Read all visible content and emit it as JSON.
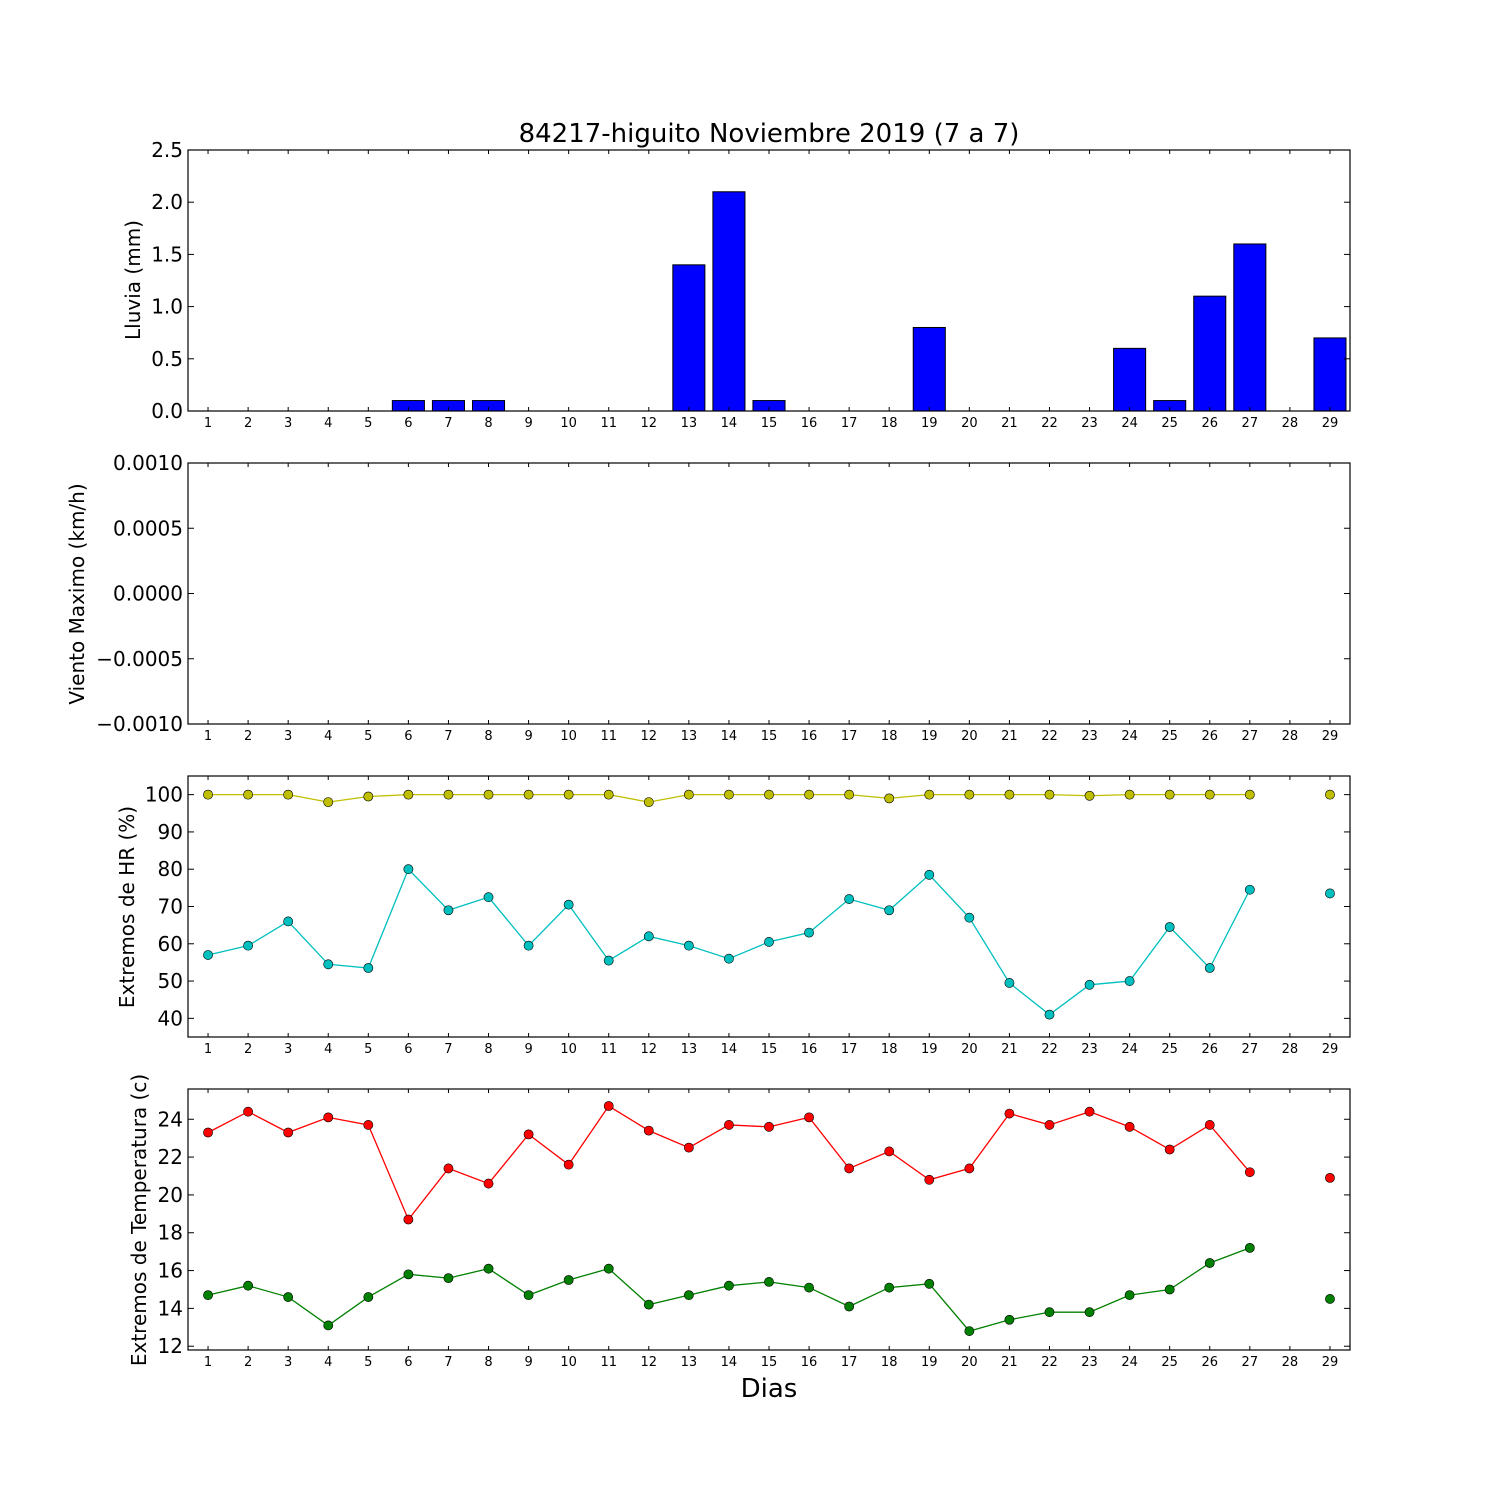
{
  "chart_data": [
    {
      "type": "bar",
      "title": "84217-higuito Noviembre 2019  (7 a 7)",
      "ylabel": "Lluvia (mm)",
      "xlabel": "",
      "categories": [
        "1",
        "2",
        "3",
        "4",
        "5",
        "6",
        "7",
        "8",
        "9",
        "10",
        "11",
        "12",
        "13",
        "14",
        "15",
        "16",
        "17",
        "18",
        "19",
        "20",
        "21",
        "22",
        "23",
        "24",
        "25",
        "26",
        "27",
        "28",
        "29"
      ],
      "values": [
        0,
        0,
        0,
        0,
        0,
        0.1,
        0.1,
        0.1,
        0,
        0,
        0,
        0,
        1.4,
        2.1,
        0.1,
        0,
        0,
        0,
        0.8,
        0,
        0,
        0,
        0,
        0.6,
        0.1,
        1.1,
        1.6,
        null,
        0.7
      ],
      "ylim": [
        0,
        2.5
      ],
      "yticks": [
        "0.0",
        "0.5",
        "1.0",
        "1.5",
        "2.0",
        "2.5"
      ],
      "color": "#0000ff"
    },
    {
      "type": "line",
      "ylabel": "Viento Maximo (km/h)",
      "xlabel": "",
      "categories": [
        "1",
        "2",
        "3",
        "4",
        "5",
        "6",
        "7",
        "8",
        "9",
        "10",
        "11",
        "12",
        "13",
        "14",
        "15",
        "16",
        "17",
        "18",
        "19",
        "20",
        "21",
        "22",
        "23",
        "24",
        "25",
        "26",
        "27",
        "28",
        "29"
      ],
      "series": [],
      "ylim": [
        -0.001,
        0.001
      ],
      "yticks": [
        "−0.0010",
        "−0.0005",
        "0.0000",
        "0.0005",
        "0.0010"
      ]
    },
    {
      "type": "line",
      "ylabel": "Extremos de HR (%)",
      "xlabel": "",
      "categories": [
        "1",
        "2",
        "3",
        "4",
        "5",
        "6",
        "7",
        "8",
        "9",
        "10",
        "11",
        "12",
        "13",
        "14",
        "15",
        "16",
        "17",
        "18",
        "19",
        "20",
        "21",
        "22",
        "23",
        "24",
        "25",
        "26",
        "27",
        "28",
        "29"
      ],
      "series": [
        {
          "color": "#bfbf00",
          "values": [
            100,
            100,
            100,
            98,
            99.5,
            100,
            100,
            100,
            100,
            100,
            100,
            98,
            100,
            100,
            100,
            100,
            100,
            99,
            100,
            100,
            100,
            100,
            99.7,
            100,
            100,
            100,
            100,
            null,
            100
          ]
        },
        {
          "color": "#00bfbf",
          "values": [
            57,
            59.5,
            66,
            54.5,
            53.5,
            80,
            69,
            72.5,
            59.5,
            70.5,
            55.5,
            62,
            59.5,
            56,
            60.5,
            63,
            72,
            69,
            78.5,
            67,
            49.5,
            41,
            49,
            50,
            64.5,
            53.5,
            74.5,
            null,
            73.5
          ]
        }
      ],
      "ylim": [
        35,
        105
      ],
      "yticks": [
        "40",
        "50",
        "60",
        "70",
        "80",
        "90",
        "100"
      ]
    },
    {
      "type": "line",
      "ylabel": "Extremos de Temperatura (c)",
      "xlabel": "Dias",
      "categories": [
        "1",
        "2",
        "3",
        "4",
        "5",
        "6",
        "7",
        "8",
        "9",
        "10",
        "11",
        "12",
        "13",
        "14",
        "15",
        "16",
        "17",
        "18",
        "19",
        "20",
        "21",
        "22",
        "23",
        "24",
        "25",
        "26",
        "27",
        "28",
        "29"
      ],
      "series": [
        {
          "color": "#ff0000",
          "values": [
            23.3,
            24.4,
            23.3,
            24.1,
            23.7,
            18.7,
            21.4,
            20.6,
            23.2,
            21.6,
            24.7,
            23.4,
            22.5,
            23.7,
            23.6,
            24.1,
            21.4,
            22.3,
            20.8,
            21.4,
            24.3,
            23.7,
            24.4,
            23.6,
            22.4,
            23.7,
            21.2,
            null,
            20.9
          ]
        },
        {
          "color": "#008000",
          "values": [
            14.7,
            15.2,
            14.6,
            13.1,
            14.6,
            15.8,
            15.6,
            16.1,
            14.7,
            15.5,
            16.1,
            14.2,
            14.7,
            15.2,
            15.4,
            15.1,
            14.1,
            15.1,
            15.3,
            12.8,
            13.4,
            13.8,
            13.8,
            14.7,
            15.0,
            16.4,
            17.2,
            null,
            14.5
          ]
        }
      ],
      "ylim": [
        11.8,
        25.6
      ],
      "yticks": [
        "12",
        "14",
        "16",
        "18",
        "20",
        "22",
        "24"
      ]
    }
  ]
}
